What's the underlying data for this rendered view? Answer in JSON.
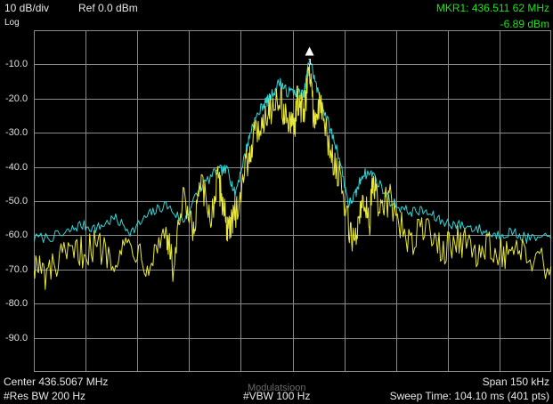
{
  "header": {
    "scale": "10 dB/div",
    "ref_level": "Ref 0.0 dBm",
    "scale_type": "Log",
    "marker_label": "MKR1: 436.511 62 MHz",
    "marker_value": "-6.89 dBm"
  },
  "footer": {
    "center": "Center 436.5067 MHz",
    "span": "Span 150 kHz",
    "rbw": "#Res BW 200 Hz",
    "vbw": "#VBW 100 Hz",
    "sweep": "Sweep Time: 104.10 ms (401 pts)",
    "watermark": "Modulatsioon"
  },
  "colors": {
    "background": "#000000",
    "grid": "#8a8a8a",
    "trace_max_hold": "#2fd6d6",
    "trace_live": "#e8e83a",
    "marker_text": "#19e619",
    "marker_symbol": "#ffffff"
  },
  "chart_data": {
    "type": "line",
    "xlabel": "",
    "ylabel": "",
    "xlim": [
      436.4317,
      436.5817
    ],
    "ylim": [
      -100,
      0
    ],
    "grid": true,
    "y_ticks": [
      "-10.0",
      "-20.0",
      "-30.0",
      "-40.0",
      "-50.0",
      "-60.0",
      "-70.0",
      "-80.0",
      "-90.0"
    ],
    "y_tick_values": [
      -10,
      -20,
      -30,
      -40,
      -50,
      -60,
      -70,
      -80,
      -90
    ],
    "x_divisions": 10,
    "marker": {
      "x": 436.51162,
      "y": -6.89,
      "label": "1"
    },
    "series": [
      {
        "color": "#2fd6d6",
        "x": [
          436.4317,
          436.44,
          436.445,
          436.45,
          436.455,
          436.46,
          436.465,
          436.47,
          436.475,
          436.48,
          436.485,
          436.488,
          436.49,
          436.493,
          436.495,
          436.498,
          436.5,
          436.503,
          436.505,
          436.508,
          436.51,
          436.5116,
          436.514,
          436.517,
          436.52,
          436.523,
          436.525,
          436.527,
          436.53,
          436.535,
          436.54,
          436.545,
          436.55,
          436.555,
          436.56,
          436.565,
          436.57,
          436.575,
          436.5817
        ],
        "y": [
          -61,
          -60,
          -57,
          -58,
          -55,
          -59,
          -54,
          -51,
          -56,
          -46,
          -41,
          -41,
          -48,
          -36,
          -28,
          -22,
          -20,
          -15,
          -18,
          -18,
          -19,
          -8,
          -18,
          -27,
          -36,
          -51,
          -48,
          -42,
          -42,
          -50,
          -53,
          -53,
          -56,
          -57,
          -58,
          -60,
          -59,
          -61,
          -61
        ]
      },
      {
        "color": "#e8e83a",
        "x": [
          436.4317,
          436.435,
          436.44,
          436.445,
          436.45,
          436.455,
          436.46,
          436.465,
          436.47,
          436.472,
          436.475,
          436.478,
          436.48,
          436.483,
          436.485,
          436.487,
          436.488,
          436.49,
          436.493,
          436.495,
          436.498,
          436.5,
          436.503,
          436.505,
          436.507,
          436.508,
          436.51,
          436.5116,
          436.513,
          436.515,
          436.517,
          436.52,
          436.523,
          436.525,
          436.527,
          436.529,
          436.53,
          436.532,
          436.535,
          436.54,
          436.545,
          436.55,
          436.555,
          436.56,
          436.565,
          436.57,
          436.575,
          436.5817
        ],
        "y": [
          -68,
          -72,
          -67,
          -65,
          -63,
          -66,
          -62,
          -68,
          -58,
          -70,
          -50,
          -60,
          -45,
          -55,
          -44,
          -52,
          -60,
          -54,
          -40,
          -33,
          -26,
          -23,
          -20,
          -26,
          -30,
          -21,
          -24,
          -11,
          -26,
          -22,
          -33,
          -42,
          -58,
          -62,
          -48,
          -56,
          -45,
          -52,
          -50,
          -62,
          -58,
          -64,
          -61,
          -66,
          -63,
          -67,
          -65,
          -69
        ]
      }
    ]
  }
}
